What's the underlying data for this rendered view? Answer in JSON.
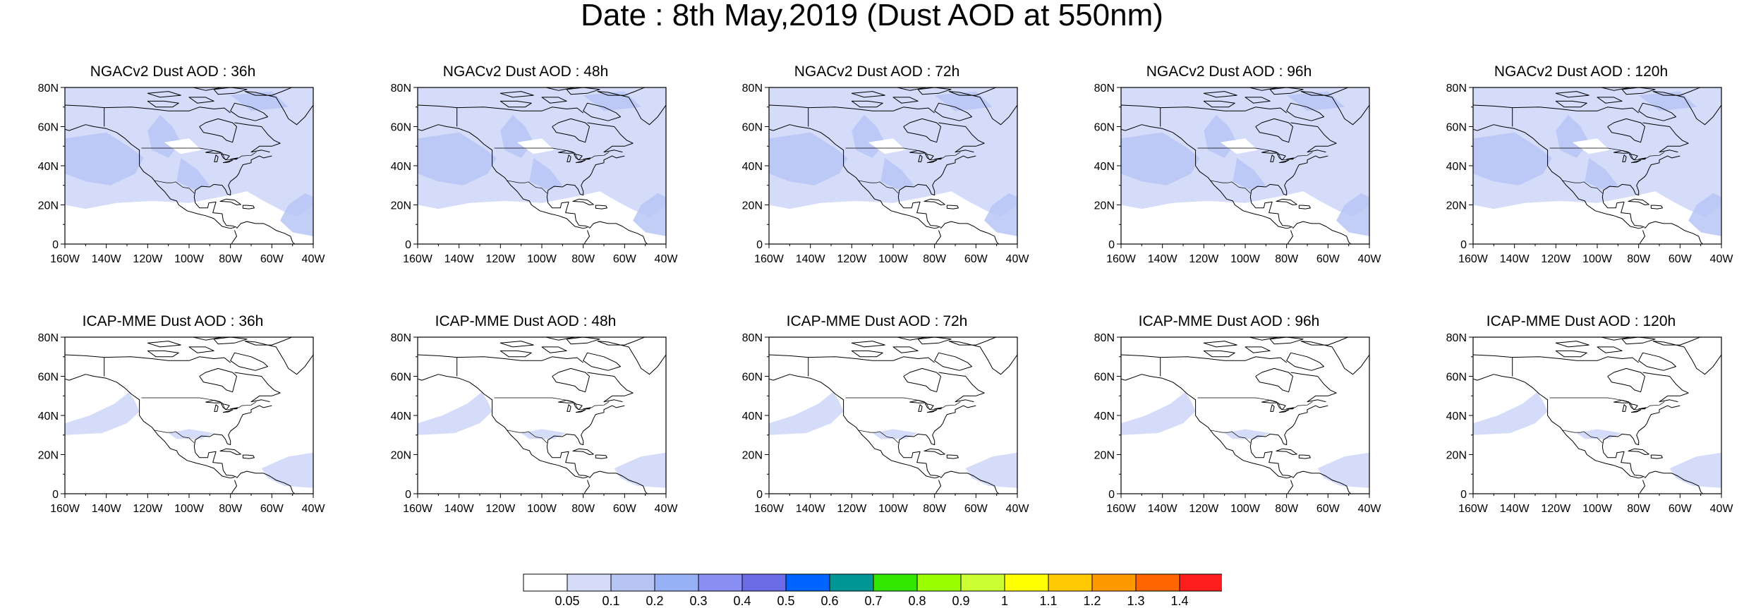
{
  "title": "Date : 8th May,2019 (Dust AOD at 550nm)",
  "axes": {
    "lat_labels": [
      "80N",
      "60N",
      "40N",
      "20N",
      "0"
    ],
    "lon_labels": [
      "160W",
      "140W",
      "120W",
      "100W",
      "80W",
      "60W",
      "40W"
    ],
    "lat_range": [
      0,
      80
    ],
    "lon_range": [
      -160,
      -40
    ]
  },
  "panels": [
    {
      "id": "ngac-36",
      "title": "NGACv2 Dust AOD : 36h",
      "model": "NGACv2",
      "lead_hours": 36,
      "coverage": "high"
    },
    {
      "id": "ngac-48",
      "title": "NGACv2 Dust AOD : 48h",
      "model": "NGACv2",
      "lead_hours": 48,
      "coverage": "high"
    },
    {
      "id": "ngac-72",
      "title": "NGACv2 Dust AOD : 72h",
      "model": "NGACv2",
      "lead_hours": 72,
      "coverage": "high"
    },
    {
      "id": "ngac-96",
      "title": "NGACv2 Dust AOD : 96h",
      "model": "NGACv2",
      "lead_hours": 96,
      "coverage": "high"
    },
    {
      "id": "ngac-120",
      "title": "NGACv2 Dust AOD : 120h",
      "model": "NGACv2",
      "lead_hours": 120,
      "coverage": "high"
    },
    {
      "id": "icap-36",
      "title": "ICAP-MME Dust AOD : 36h",
      "model": "ICAP-MME",
      "lead_hours": 36,
      "coverage": "low"
    },
    {
      "id": "icap-48",
      "title": "ICAP-MME Dust AOD : 48h",
      "model": "ICAP-MME",
      "lead_hours": 48,
      "coverage": "low"
    },
    {
      "id": "icap-72",
      "title": "ICAP-MME Dust AOD : 72h",
      "model": "ICAP-MME",
      "lead_hours": 72,
      "coverage": "low"
    },
    {
      "id": "icap-96",
      "title": "ICAP-MME Dust AOD : 96h",
      "model": "ICAP-MME",
      "lead_hours": 96,
      "coverage": "low"
    },
    {
      "id": "icap-120",
      "title": "ICAP-MME Dust AOD : 120h",
      "model": "ICAP-MME",
      "lead_hours": 120,
      "coverage": "low"
    }
  ],
  "colors": {
    "light_dust": "#d4dcfa",
    "medium_dust": "#b7c5f5",
    "map_lines": "#000000"
  },
  "colorbar": {
    "colors": [
      "#ffffff",
      "#d4dcfa",
      "#b7c5f5",
      "#97b1f7",
      "#8a8ff3",
      "#6b6be8",
      "#0064ff",
      "#009696",
      "#33e600",
      "#99ff00",
      "#ccff33",
      "#ffff00",
      "#ffc800",
      "#ff9900",
      "#ff6600",
      "#ff1e1e"
    ],
    "labels": [
      "0.05",
      "0.1",
      "0.2",
      "0.3",
      "0.4",
      "0.5",
      "0.6",
      "0.7",
      "0.8",
      "0.9",
      "1",
      "1.1",
      "1.2",
      "1.3",
      "1.4"
    ]
  }
}
